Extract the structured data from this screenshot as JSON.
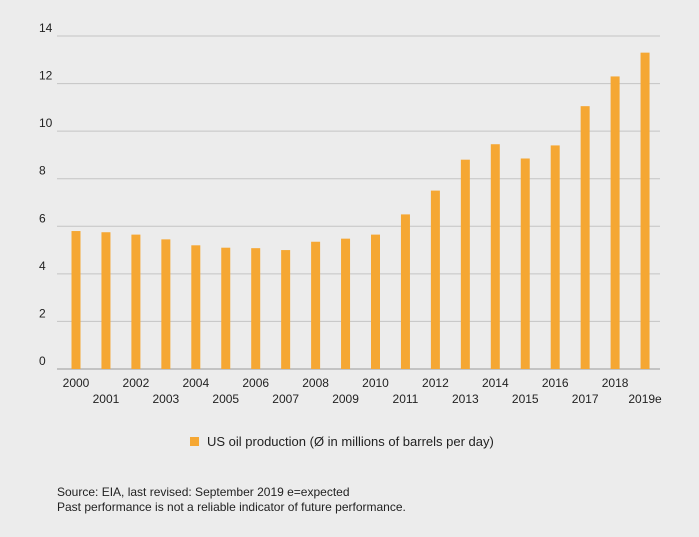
{
  "chart_data": {
    "type": "bar",
    "categories": [
      "2000",
      "2001",
      "2002",
      "2003",
      "2004",
      "2005",
      "2006",
      "2007",
      "2008",
      "2009",
      "2010",
      "2011",
      "2012",
      "2013",
      "2014",
      "2015",
      "2016",
      "2017",
      "2018",
      "2019e"
    ],
    "series": [
      {
        "name": "US oil production (Ø in millions of barrels per day)",
        "values": [
          5.8,
          5.75,
          5.65,
          5.45,
          5.2,
          5.1,
          5.08,
          5.0,
          5.35,
          5.48,
          5.65,
          6.5,
          7.5,
          8.8,
          9.45,
          8.85,
          9.4,
          11.05,
          12.3,
          13.3
        ],
        "color": "#f5a733"
      }
    ],
    "yticks": [
      0,
      2,
      4,
      6,
      8,
      10,
      12,
      14
    ],
    "ylim": [
      0,
      14
    ],
    "grid": true,
    "title": "",
    "xlabel": "",
    "ylabel": "",
    "legend_position": "bottom"
  },
  "legend": {
    "label": "US oil production (Ø in millions of barrels per day)",
    "color": "#f5a733"
  },
  "footnote": {
    "line1": "Source: EIA, last revised: September 2019  e=expected",
    "line2": "Past performance is not a reliable indicator of future performance."
  }
}
